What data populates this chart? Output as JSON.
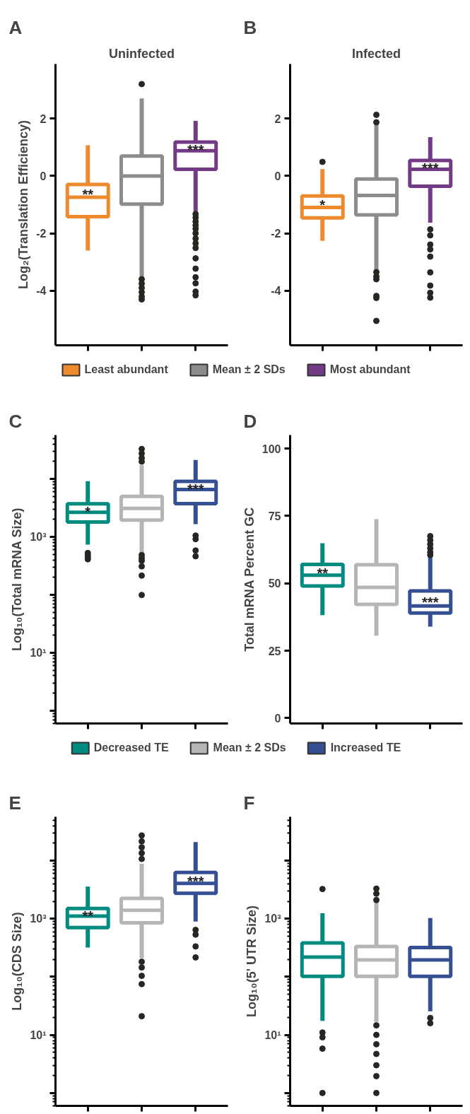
{
  "chart_data": [
    {
      "type": "box",
      "title": "Uninfected",
      "ylabel": "Log₂(Translation Efficiency)",
      "categories": [
        null,
        null,
        null
      ],
      "ylim": [
        -5.9,
        3.9
      ],
      "yticks": [
        -4,
        -2,
        0,
        2
      ],
      "tick_labels": "y",
      "legend": "bottom",
      "annotations": [
        "A"
      ],
      "value_labels": [
        "**",
        null,
        "***"
      ],
      "series": [
        {
          "name": "Least abundant",
          "color": "#ee8a2e",
          "boxes": [
            {
              "low": -2.6,
              "q1": -1.42,
              "median": -0.74,
              "q3": -0.3,
              "high": 1.07
            },
            null,
            null
          ]
        },
        {
          "name": "Mean ± 2 SDs",
          "color": "#8c8c8c",
          "boxes": [
            null,
            {
              "low": -3.53,
              "q1": -0.98,
              "median": 0,
              "q3": 0.69,
              "high": 2.7,
              "outliers": [
                3.2,
                -3.6,
                -3.75,
                -3.9,
                -4.05,
                -4.2,
                -4.3
              ]
            },
            null
          ]
        },
        {
          "name": "Most abundant",
          "color": "#733a86",
          "boxes": [
            null,
            null,
            {
              "low": -1.25,
              "q1": 0.23,
              "median": 0.88,
              "q3": 1.18,
              "high": 1.92,
              "outliers": [
                -1.33,
                -1.45,
                -1.59,
                -1.72,
                -1.84,
                -2.0,
                -2.18,
                -2.35,
                -2.51,
                -2.87,
                -3.23,
                -3.53,
                -3.74,
                -4.03,
                -4.16
              ]
            }
          ]
        }
      ]
    },
    {
      "type": "box",
      "title": "Infected",
      "categories": [
        null,
        null,
        null
      ],
      "ylim": [
        -5.9,
        3.9
      ],
      "yticks": [
        -4,
        -2,
        0,
        2
      ],
      "tick_labels": "y",
      "annotations": [
        "B"
      ],
      "value_labels": [
        "*",
        null,
        "***"
      ],
      "series": [
        {
          "color": "#ee8a2e",
          "boxes": [
            {
              "low": -2.26,
              "q1": -1.46,
              "median": -1.1,
              "q3": -0.7,
              "high": 0.24,
              "outliers": [
                0.49
              ]
            },
            null,
            null
          ]
        },
        {
          "color": "#8c8c8c",
          "boxes": [
            null,
            {
              "low": -3.27,
              "q1": -1.36,
              "median": -0.68,
              "q3": -0.11,
              "high": 1.79,
              "outliers": [
                2.13,
                1.87,
                -3.35,
                -3.5,
                -3.6,
                -4.18,
                -4.25,
                -5.05
              ]
            },
            null
          ]
        },
        {
          "color": "#733a86",
          "boxes": [
            null,
            null,
            {
              "low": -1.63,
              "q1": -0.36,
              "median": 0.23,
              "q3": 0.54,
              "high": 1.35,
              "outliers": [
                -1.86,
                -2.07,
                -2.39,
                -2.56,
                -2.81,
                -3.36,
                -3.82,
                -4.07,
                -4.24
              ]
            }
          ]
        }
      ]
    },
    {
      "type": "box",
      "ylabel": "Log₁₀(Total mRNA Size)",
      "categories": [
        null,
        null,
        null
      ],
      "log": true,
      "ylim": [
        0.6,
        57000
      ],
      "yticks": [
        {
          "value": 1,
          "label": null
        },
        {
          "value": 10,
          "label": "10¹"
        },
        {
          "value": 100,
          "label": null
        },
        {
          "value": 1000,
          "label": "10³"
        },
        {
          "value": 10000,
          "label": null
        }
      ],
      "tick_labels": "y",
      "legend": "bottom",
      "annotations": [
        "C"
      ],
      "value_labels": [
        "*",
        null,
        "***"
      ],
      "series": [
        {
          "name": "Decreased TE",
          "color": "#008b80",
          "boxes": [
            {
              "low": 730,
              "q1": 1800,
              "median": 2640,
              "q3": 3720,
              "high": 9100,
              "outliers": [
                525,
                480,
                443,
                410
              ]
            },
            null,
            null
          ]
        },
        {
          "name": "Mean ± 2 SDs",
          "color": "#b5b5b5",
          "boxes": [
            null,
            {
              "low": 530,
              "q1": 1940,
              "median": 3100,
              "q3": 4970,
              "high": 17400,
              "outliers": [
                32800,
                27400,
                22900,
                19900,
                484,
                430,
                386,
                309,
                214,
                99
              ]
            },
            null
          ]
        },
        {
          "name": "Increased TE",
          "color": "#354f93",
          "boxes": [
            null,
            null,
            {
              "low": 1650,
              "q1": 3730,
              "median": 6540,
              "q3": 9060,
              "high": 21200,
              "outliers": [
                1050,
                913,
                580,
                462
              ]
            }
          ]
        }
      ]
    },
    {
      "type": "box",
      "ylabel": "Total mRNA Percent GC",
      "categories": [
        null,
        null,
        null
      ],
      "ylim": [
        -2,
        105
      ],
      "yticks": [
        0,
        25,
        50,
        75,
        100
      ],
      "tick_labels": "y",
      "annotations": [
        "D"
      ],
      "value_labels": [
        "**",
        null,
        "***"
      ],
      "series": [
        {
          "color": "#008b80",
          "boxes": [
            {
              "low": 38.2,
              "q1": 49.0,
              "median": 53.0,
              "q3": 57.0,
              "high": 64.9
            },
            null,
            null
          ]
        },
        {
          "color": "#b5b5b5",
          "boxes": [
            null,
            {
              "low": 30.6,
              "q1": 42.2,
              "median": 48.5,
              "q3": 56.9,
              "high": 73.8
            },
            null
          ]
        },
        {
          "color": "#354f93",
          "boxes": [
            null,
            null,
            {
              "low": 33.9,
              "q1": 39.0,
              "median": 41.6,
              "q3": 47.2,
              "high": 59.7,
              "outliers": [
                67.5,
                66.0,
                64.5,
                63.0,
                61.5,
                60.5
              ]
            }
          ]
        }
      ]
    },
    {
      "type": "box",
      "ylabel": "Log₁₀(CDS Size)",
      "categories": [
        null,
        null,
        null
      ],
      "log": true,
      "ylim": [
        0.6,
        57000
      ],
      "yticks": [
        {
          "value": 1,
          "label": null
        },
        {
          "value": 10,
          "label": "10¹"
        },
        {
          "value": 100,
          "label": null
        },
        {
          "value": 1000,
          "label": "10³"
        },
        {
          "value": 10000,
          "label": null
        }
      ],
      "tick_labels": "y",
      "annotations": [
        "E"
      ],
      "value_labels": [
        "**",
        null,
        "***"
      ],
      "series": [
        {
          "color": "#008b80",
          "boxes": [
            {
              "low": 319,
              "q1": 707,
              "median": 1110,
              "q3": 1500,
              "high": 3570
            },
            null,
            null
          ]
        },
        {
          "color": "#b5b5b5",
          "boxes": [
            null,
            {
              "low": 210,
              "q1": 853,
              "median": 1400,
              "q3": 2240,
              "high": 8850,
              "outliers": [
                27200,
                21500,
                17000,
                13500,
                10700,
                182,
                145,
                104,
                75,
                21
              ]
            },
            null
          ]
        },
        {
          "color": "#354f93",
          "boxes": [
            null,
            null,
            {
              "low": 894,
              "q1": 2750,
              "median": 4070,
              "q3": 6270,
              "high": 20900,
              "outliers": [
                643,
                534,
                334,
                216
              ]
            }
          ]
        }
      ]
    },
    {
      "type": "box",
      "ylabel": "Log₁₀(5' UTR Size)",
      "categories": [
        null,
        null,
        null
      ],
      "log": true,
      "ylim": [
        0.6,
        57000
      ],
      "yticks": [
        {
          "value": 1,
          "label": null
        },
        {
          "value": 10,
          "label": "10¹"
        },
        {
          "value": 100,
          "label": null
        },
        {
          "value": 1000,
          "label": "10³"
        },
        {
          "value": 10000,
          "label": null
        }
      ],
      "tick_labels": "y",
      "annotations": [
        "F"
      ],
      "series": [
        {
          "color": "#008b80",
          "boxes": [
            {
              "low": 17.5,
              "q1": 102,
              "median": 219,
              "q3": 384,
              "high": 1240,
              "outliers": [
                3250,
                11,
                9.1,
                5.8,
                1.0
              ]
            },
            null,
            null
          ]
        },
        {
          "color": "#b5b5b5",
          "boxes": [
            null,
            {
              "low": 16.7,
              "q1": 102,
              "median": 196,
              "q3": 334,
              "high": 1890,
              "outliers": [
                3300,
                2700,
                2100,
                14.6,
                10,
                6.9,
                4.7,
                3.0,
                1.95,
                1.0
              ]
            },
            null
          ]
        },
        {
          "color": "#354f93",
          "boxes": [
            null,
            null,
            {
              "low": 25.5,
              "q1": 102,
              "median": 196,
              "q3": 319,
              "high": 1030,
              "outliers": [
                19.6,
                15.9
              ]
            }
          ]
        }
      ]
    }
  ]
}
